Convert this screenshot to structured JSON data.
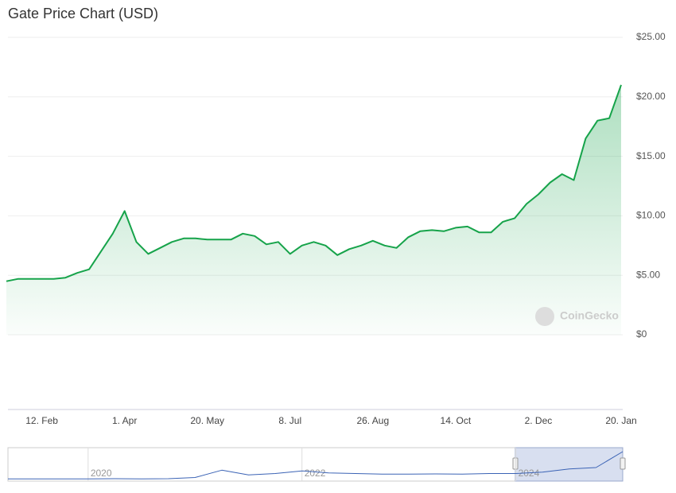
{
  "chart_data": [
    {
      "type": "line",
      "title": "Gate Price Chart (USD)",
      "watermark": "CoinGecko",
      "color": "#16a34a",
      "categories": [
        null,
        null,
        null,
        "12. Feb",
        null,
        null,
        null,
        null,
        null,
        null,
        "1. Apr",
        null,
        null,
        null,
        null,
        null,
        null,
        "20. May",
        null,
        null,
        null,
        null,
        null,
        null,
        "8. Jul",
        null,
        null,
        null,
        null,
        null,
        null,
        "26. Aug",
        null,
        null,
        null,
        null,
        null,
        null,
        "14. Oct",
        null,
        null,
        null,
        null,
        null,
        null,
        "2. Dec",
        null,
        null,
        null,
        null,
        null,
        null,
        "20. Jan"
      ],
      "values": [
        4.5,
        4.7,
        4.7,
        4.7,
        4.7,
        4.8,
        5.2,
        5.5,
        7.0,
        8.5,
        10.4,
        7.8,
        6.8,
        7.3,
        7.8,
        8.1,
        8.1,
        8.0,
        8.0,
        8.0,
        8.5,
        8.3,
        7.6,
        7.8,
        6.8,
        7.5,
        7.8,
        7.5,
        6.7,
        7.2,
        7.5,
        7.9,
        7.5,
        7.3,
        8.2,
        8.7,
        8.8,
        8.7,
        9.0,
        9.1,
        8.6,
        8.6,
        9.5,
        9.8,
        11.0,
        11.8,
        12.8,
        13.5,
        13.0,
        16.5,
        18.0,
        18.2,
        21.0
      ],
      "ylim": [
        0,
        25
      ],
      "yticks": [
        {
          "value": 0,
          "label": "$0"
        },
        {
          "value": 5,
          "label": "$5.00"
        },
        {
          "value": 10,
          "label": "$10.00"
        },
        {
          "value": 15,
          "label": "$15.00"
        },
        {
          "value": 20,
          "label": "$20.00"
        },
        {
          "value": 25,
          "label": "$25.00"
        }
      ],
      "grid": true
    },
    {
      "type": "line",
      "color": "#3b63b5",
      "categories": [
        null,
        null,
        null,
        "2020",
        null,
        null,
        null,
        null,
        null,
        null,
        null,
        "2022",
        null,
        null,
        null,
        null,
        null,
        null,
        null,
        "2024",
        null,
        null,
        null,
        null
      ],
      "values": [
        0.5,
        0.5,
        0.5,
        0.5,
        0.6,
        0.5,
        0.6,
        1.5,
        7,
        3.5,
        4.5,
        6.5,
        5,
        4.5,
        4,
        4,
        4.2,
        4,
        4.5,
        4.5,
        5.5,
        8,
        9,
        21
      ]
    }
  ]
}
